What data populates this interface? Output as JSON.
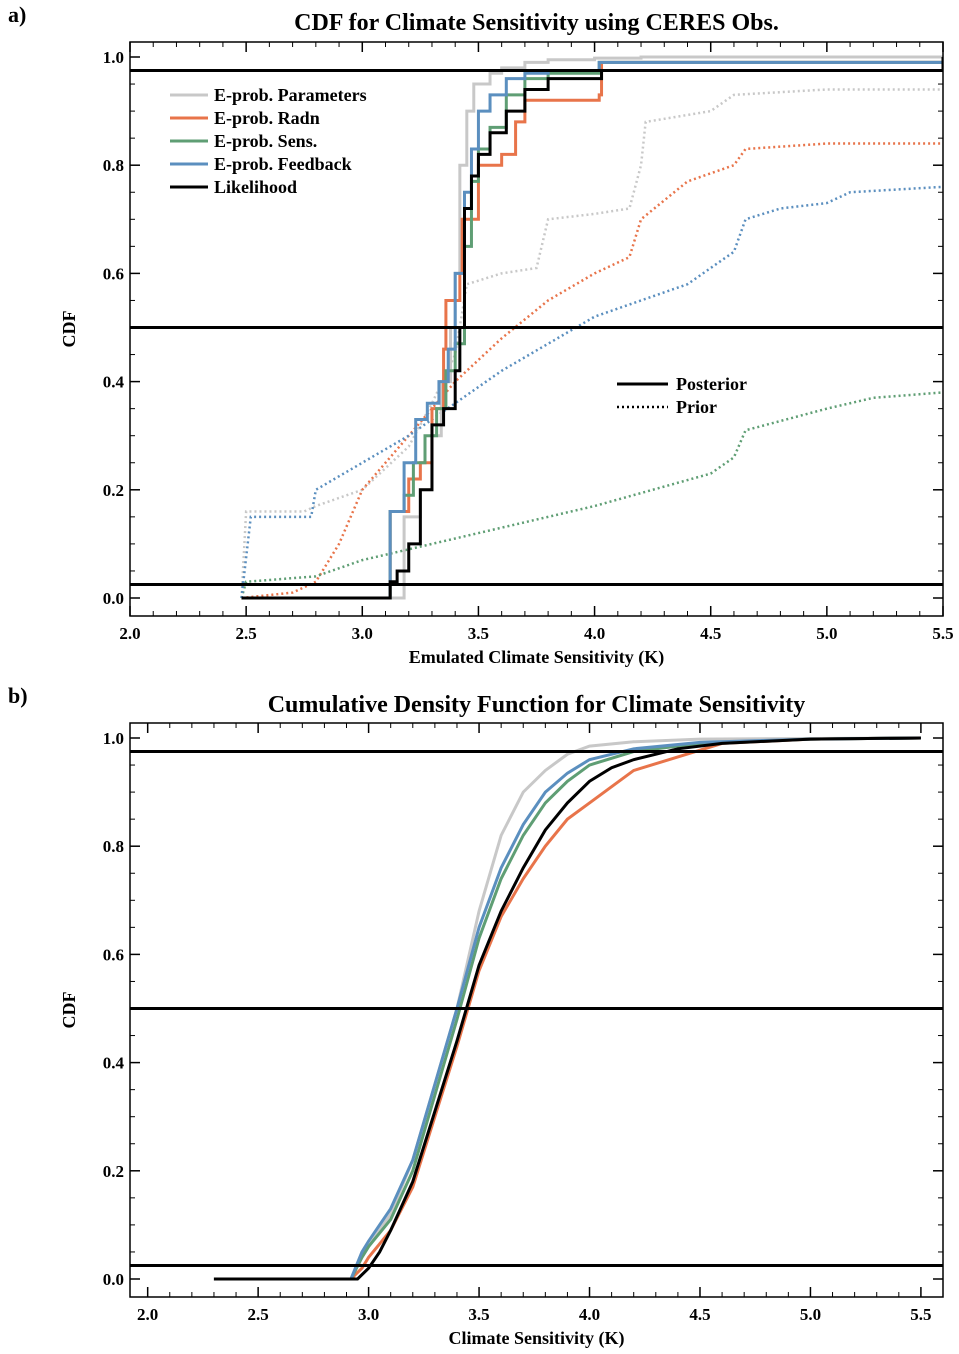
{
  "chart_data": [
    {
      "panel": "a)",
      "type": "line",
      "title": "CDF for Climate Sensitivity using CERES Obs.",
      "xlabel": "Emulated Climate Sensitivity (K)",
      "ylabel": "CDF",
      "xlim": [
        2.0,
        5.5
      ],
      "ylim": [
        0.0,
        1.0
      ],
      "xticks": [
        "2.0",
        "2.5",
        "3.0",
        "3.5",
        "4.0",
        "4.5",
        "5.0",
        "5.5"
      ],
      "yticks": [
        "0.0",
        "0.2",
        "0.4",
        "0.6",
        "0.8",
        "1.0"
      ],
      "hlines": [
        0.025,
        0.5,
        0.975
      ],
      "legend_position": "top-left",
      "style_legend": {
        "position": "center-right",
        "entries": [
          {
            "label": "Posterior",
            "dash": "solid"
          },
          {
            "label": "Prior",
            "dash": "dotted"
          }
        ]
      },
      "series": [
        {
          "name": "E-prob. Parameters",
          "color": "#c8c8c8",
          "dash": "solid",
          "x": [
            2.48,
            3.11,
            3.18,
            3.25,
            3.3,
            3.34,
            3.38,
            3.4,
            3.42,
            3.45,
            3.48,
            3.55,
            3.6,
            3.7,
            3.8,
            4.0,
            4.2,
            5.5
          ],
          "y": [
            0.0,
            0.0,
            0.15,
            0.2,
            0.3,
            0.4,
            0.5,
            0.6,
            0.8,
            0.9,
            0.95,
            0.97,
            0.98,
            0.99,
            0.995,
            0.998,
            1.0,
            1.0
          ]
        },
        {
          "name": "E-prob. Radn",
          "color": "#e8744a",
          "dash": "solid",
          "x": [
            2.48,
            3.11,
            3.12,
            3.2,
            3.25,
            3.3,
            3.35,
            3.36,
            3.42,
            3.43,
            3.5,
            3.6,
            3.66,
            3.7,
            3.8,
            4.02,
            4.03,
            5.5
          ],
          "y": [
            0.0,
            0.0,
            0.16,
            0.22,
            0.25,
            0.35,
            0.46,
            0.55,
            0.6,
            0.7,
            0.8,
            0.82,
            0.88,
            0.92,
            0.92,
            0.93,
            0.99,
            1.0
          ]
        },
        {
          "name": "E-prob. Sens.",
          "color": "#5f9e74",
          "dash": "solid",
          "x": [
            2.48,
            3.11,
            3.12,
            3.18,
            3.22,
            3.27,
            3.32,
            3.36,
            3.4,
            3.44,
            3.47,
            3.5,
            3.55,
            3.62,
            3.7,
            3.8,
            4.02,
            5.5
          ],
          "y": [
            0.0,
            0.0,
            0.16,
            0.19,
            0.25,
            0.3,
            0.35,
            0.42,
            0.47,
            0.65,
            0.77,
            0.83,
            0.87,
            0.93,
            0.96,
            0.97,
            0.99,
            1.0
          ]
        },
        {
          "name": "E-prob. Feedback",
          "color": "#5b8fbf",
          "dash": "solid",
          "x": [
            2.48,
            3.11,
            3.12,
            3.18,
            3.23,
            3.28,
            3.33,
            3.37,
            3.4,
            3.44,
            3.47,
            3.5,
            3.55,
            3.62,
            3.7,
            3.8,
            4.02,
            5.5
          ],
          "y": [
            0.0,
            0.0,
            0.16,
            0.25,
            0.33,
            0.36,
            0.4,
            0.46,
            0.6,
            0.75,
            0.83,
            0.9,
            0.93,
            0.96,
            0.97,
            0.975,
            0.99,
            1.0
          ]
        },
        {
          "name": "Likelihood",
          "color": "#000000",
          "dash": "solid",
          "x": [
            2.48,
            3.1,
            3.12,
            3.15,
            3.2,
            3.25,
            3.3,
            3.35,
            3.4,
            3.42,
            3.44,
            3.47,
            3.5,
            3.55,
            3.62,
            3.7,
            3.8,
            4.02,
            4.03,
            5.5
          ],
          "y": [
            0.0,
            0.0,
            0.03,
            0.05,
            0.1,
            0.2,
            0.32,
            0.35,
            0.42,
            0.5,
            0.72,
            0.78,
            0.82,
            0.86,
            0.9,
            0.94,
            0.96,
            0.96,
            0.975,
            1.0
          ]
        },
        {
          "name": "E-prob. Parameters (prior)",
          "color": "#c8c8c8",
          "dash": "dotted",
          "x": [
            2.48,
            2.5,
            2.75,
            2.8,
            3.0,
            3.2,
            3.3,
            3.4,
            3.45,
            3.6,
            3.75,
            3.8,
            4.0,
            4.15,
            4.2,
            4.22,
            4.5,
            4.6,
            5.0,
            5.5
          ],
          "y": [
            0.0,
            0.16,
            0.16,
            0.17,
            0.2,
            0.28,
            0.36,
            0.45,
            0.58,
            0.6,
            0.61,
            0.7,
            0.71,
            0.72,
            0.8,
            0.88,
            0.9,
            0.93,
            0.94,
            0.94
          ]
        },
        {
          "name": "E-prob. Radn (prior)",
          "color": "#e8744a",
          "dash": "dotted",
          "x": [
            2.48,
            2.7,
            2.8,
            2.9,
            3.0,
            3.2,
            3.4,
            3.6,
            3.8,
            4.0,
            4.15,
            4.2,
            4.4,
            4.6,
            4.65,
            5.0,
            5.5
          ],
          "y": [
            0.0,
            0.01,
            0.03,
            0.1,
            0.2,
            0.3,
            0.4,
            0.48,
            0.55,
            0.6,
            0.63,
            0.7,
            0.77,
            0.8,
            0.83,
            0.84,
            0.84
          ]
        },
        {
          "name": "E-prob. Sens. (prior)",
          "color": "#5f9e74",
          "dash": "dotted",
          "x": [
            2.48,
            2.5,
            2.8,
            3.0,
            3.5,
            4.0,
            4.5,
            4.6,
            4.65,
            5.0,
            5.2,
            5.5
          ],
          "y": [
            0.0,
            0.03,
            0.04,
            0.07,
            0.12,
            0.17,
            0.23,
            0.26,
            0.31,
            0.35,
            0.37,
            0.38
          ]
        },
        {
          "name": "E-prob. Feedback (prior)",
          "color": "#5b8fbf",
          "dash": "dotted",
          "x": [
            2.48,
            2.52,
            2.78,
            2.8,
            3.0,
            3.2,
            3.4,
            3.6,
            3.8,
            4.0,
            4.2,
            4.4,
            4.6,
            4.65,
            4.8,
            5.0,
            5.1,
            5.5
          ],
          "y": [
            0.0,
            0.15,
            0.15,
            0.2,
            0.25,
            0.3,
            0.36,
            0.42,
            0.47,
            0.52,
            0.55,
            0.58,
            0.64,
            0.7,
            0.72,
            0.73,
            0.75,
            0.76
          ]
        }
      ]
    },
    {
      "panel": "b)",
      "type": "line",
      "title": "Cumulative Density Function for Climate Sensitivity",
      "xlabel": "Climate Sensitivity (K)",
      "ylabel": "CDF",
      "xlim": [
        1.92,
        5.6
      ],
      "ylim": [
        0.0,
        1.0
      ],
      "xticks": [
        "2.0",
        "2.5",
        "3.0",
        "3.5",
        "4.0",
        "4.5",
        "5.0",
        "5.5"
      ],
      "yticks": [
        "0.0",
        "0.2",
        "0.4",
        "0.6",
        "0.8",
        "1.0"
      ],
      "hlines": [
        0.025,
        0.5,
        0.975
      ],
      "series": [
        {
          "name": "E-prob. Parameters",
          "color": "#c8c8c8",
          "dash": "solid",
          "x": [
            2.3,
            2.92,
            2.97,
            3.0,
            3.1,
            3.2,
            3.3,
            3.4,
            3.5,
            3.6,
            3.7,
            3.8,
            3.9,
            4.0,
            4.2,
            4.5,
            5.5
          ],
          "y": [
            0.0,
            0.0,
            0.04,
            0.06,
            0.12,
            0.22,
            0.36,
            0.5,
            0.68,
            0.82,
            0.9,
            0.94,
            0.97,
            0.985,
            0.993,
            0.998,
            1.0
          ]
        },
        {
          "name": "E-prob. Radn",
          "color": "#e8744a",
          "dash": "solid",
          "x": [
            2.3,
            2.92,
            2.97,
            3.0,
            3.1,
            3.2,
            3.3,
            3.4,
            3.5,
            3.6,
            3.7,
            3.8,
            3.9,
            4.0,
            4.1,
            4.2,
            4.4,
            4.6,
            5.0,
            5.5
          ],
          "y": [
            0.0,
            0.0,
            0.02,
            0.04,
            0.09,
            0.17,
            0.3,
            0.43,
            0.57,
            0.67,
            0.74,
            0.8,
            0.85,
            0.88,
            0.91,
            0.94,
            0.965,
            0.99,
            0.998,
            1.0
          ]
        },
        {
          "name": "E-prob. Sens.",
          "color": "#5f9e74",
          "dash": "solid",
          "x": [
            2.3,
            2.92,
            2.97,
            3.0,
            3.1,
            3.2,
            3.3,
            3.4,
            3.5,
            3.6,
            3.7,
            3.8,
            3.9,
            4.0,
            4.2,
            4.5,
            5.0,
            5.5
          ],
          "y": [
            0.0,
            0.0,
            0.04,
            0.06,
            0.11,
            0.2,
            0.34,
            0.48,
            0.63,
            0.74,
            0.82,
            0.88,
            0.92,
            0.95,
            0.975,
            0.99,
            0.998,
            1.0
          ]
        },
        {
          "name": "E-prob. Feedback",
          "color": "#5b8fbf",
          "dash": "solid",
          "x": [
            2.3,
            2.92,
            2.97,
            3.0,
            3.1,
            3.2,
            3.3,
            3.4,
            3.5,
            3.6,
            3.7,
            3.8,
            3.9,
            4.0,
            4.2,
            4.5,
            5.0,
            5.5
          ],
          "y": [
            0.0,
            0.0,
            0.05,
            0.07,
            0.13,
            0.22,
            0.36,
            0.5,
            0.65,
            0.76,
            0.84,
            0.9,
            0.935,
            0.96,
            0.98,
            0.992,
            0.998,
            1.0
          ]
        },
        {
          "name": "Likelihood",
          "color": "#000000",
          "dash": "solid",
          "x": [
            2.3,
            2.95,
            3.0,
            3.05,
            3.1,
            3.2,
            3.3,
            3.4,
            3.5,
            3.6,
            3.7,
            3.8,
            3.9,
            4.0,
            4.1,
            4.2,
            4.4,
            4.6,
            5.0,
            5.5
          ],
          "y": [
            0.0,
            0.0,
            0.02,
            0.05,
            0.09,
            0.18,
            0.31,
            0.44,
            0.58,
            0.68,
            0.76,
            0.83,
            0.88,
            0.92,
            0.945,
            0.96,
            0.98,
            0.99,
            0.998,
            1.0
          ]
        }
      ]
    }
  ]
}
